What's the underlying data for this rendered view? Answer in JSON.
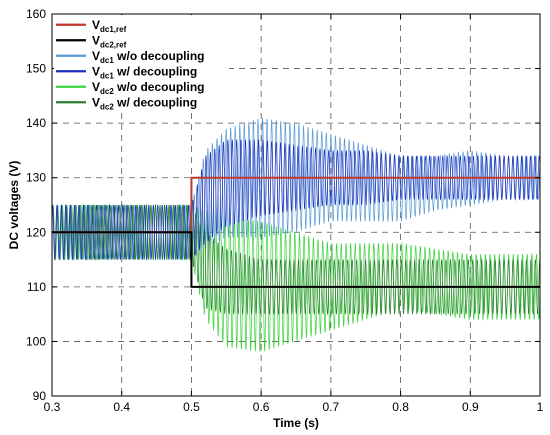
{
  "chart_data": {
    "type": "line",
    "xlabel": "Time (s)",
    "ylabel": "DC voltages (V)",
    "xlim": [
      0.3,
      1.0
    ],
    "ylim": [
      90,
      160
    ],
    "xticks": [
      "0.3",
      "0.4",
      "0.5",
      "0.6",
      "0.7",
      "0.8",
      "0.9",
      "1"
    ],
    "yticks": [
      "90",
      "100",
      "110",
      "120",
      "130",
      "140",
      "150",
      "160"
    ],
    "grid": true,
    "legend_position": "top-left",
    "series": [
      {
        "name": "Vdc1,ref",
        "legend_main": "V",
        "legend_sub": "dc1,ref",
        "legend_rest": "",
        "color": "#c0392b",
        "kind": "step",
        "x": [
          0.3,
          0.5,
          0.5,
          1.0
        ],
        "y": [
          120,
          120,
          130,
          130
        ]
      },
      {
        "name": "Vdc2,ref",
        "legend_main": "V",
        "legend_sub": "dc2,ref",
        "legend_rest": "",
        "color": "#000000",
        "kind": "step",
        "x": [
          0.3,
          0.5,
          0.5,
          1.0
        ],
        "y": [
          120,
          120,
          110,
          110
        ]
      },
      {
        "name": "Vdc1 w/o decoupling",
        "legend_main": "V",
        "legend_sub": "dc1",
        "legend_rest": " w/o decoupling",
        "color": "#5b9bd5",
        "kind": "oscillation",
        "pre": {
          "center": 120,
          "amplitude": 5
        },
        "post_envelope_x": [
          0.5,
          0.52,
          0.55,
          0.6,
          0.65,
          0.7,
          0.75,
          0.8,
          0.85,
          0.9,
          0.95,
          1.0
        ],
        "post_center": [
          120,
          126,
          129,
          130,
          130,
          130,
          129,
          128,
          129,
          130,
          130,
          130
        ],
        "post_amplitude": [
          5,
          9,
          10,
          11,
          10,
          8,
          7,
          6,
          5,
          5,
          4,
          4
        ]
      },
      {
        "name": "Vdc1 w/ decoupling",
        "legend_main": "V",
        "legend_sub": "dc1",
        "legend_rest": " w/  decoupling",
        "color": "#1f2fbf",
        "kind": "oscillation",
        "pre": {
          "center": 120,
          "amplitude": 5
        },
        "post_envelope_x": [
          0.5,
          0.52,
          0.55,
          0.6,
          0.65,
          0.7,
          0.75,
          0.8,
          0.85,
          0.9,
          0.95,
          1.0
        ],
        "post_center": [
          120,
          126,
          129,
          130,
          130,
          130,
          130,
          130,
          130,
          130,
          130,
          130
        ],
        "post_amplitude": [
          5,
          8,
          8,
          7,
          6,
          5,
          5,
          4,
          4,
          4,
          4,
          4
        ]
      },
      {
        "name": "Vdc2 w/o decoupling",
        "legend_main": "V",
        "legend_sub": "dc2",
        "legend_rest": " w/o decoupling",
        "color": "#3bd23b",
        "kind": "oscillation",
        "pre": {
          "center": 120,
          "amplitude": 5
        },
        "post_envelope_x": [
          0.5,
          0.52,
          0.55,
          0.6,
          0.65,
          0.7,
          0.75,
          0.8,
          0.85,
          0.9,
          0.95,
          1.0
        ],
        "post_center": [
          120,
          114,
          111,
          110,
          110,
          110,
          111,
          112,
          111,
          110,
          110,
          110
        ],
        "post_amplitude": [
          5,
          10,
          12,
          12,
          10,
          8,
          7,
          6,
          6,
          6,
          6,
          6
        ]
      },
      {
        "name": "Vdc2 w/ decoupling",
        "legend_main": "V",
        "legend_sub": "dc2",
        "legend_rest": " w/  decoupling",
        "color": "#2e7d32",
        "kind": "oscillation",
        "pre": {
          "center": 120,
          "amplitude": 5
        },
        "post_envelope_x": [
          0.5,
          0.52,
          0.55,
          0.6,
          0.65,
          0.7,
          0.75,
          0.8,
          0.85,
          0.9,
          0.95,
          1.0
        ],
        "post_center": [
          120,
          113,
          111,
          110,
          110,
          110,
          110,
          110,
          110,
          110,
          110,
          110
        ],
        "post_amplitude": [
          5,
          7,
          6,
          5,
          5,
          5,
          5,
          5,
          5,
          5,
          5,
          5
        ]
      }
    ]
  }
}
